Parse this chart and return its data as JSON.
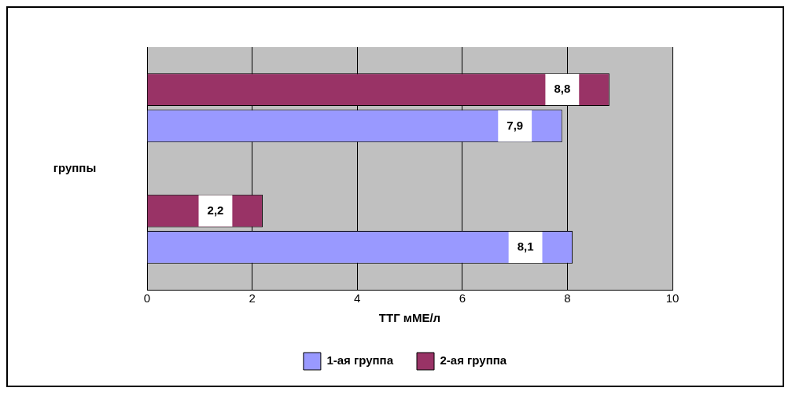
{
  "chart_data": {
    "type": "bar",
    "orientation": "horizontal",
    "xlabel": "ТТГ мМЕ/л",
    "ylabel": "группы",
    "categories": [
      null,
      null
    ],
    "series": [
      {
        "name": "1-ая группа",
        "color": "#9999ff",
        "values": [
          7.9,
          8.1
        ],
        "value_labels": [
          "7,9",
          "8,1"
        ]
      },
      {
        "name": "2-ая группа",
        "color": "#993366",
        "values": [
          8.8,
          2.2
        ],
        "value_labels": [
          "8,8",
          "2,2"
        ]
      }
    ],
    "xlim": [
      0,
      10
    ],
    "xticks": [
      0,
      2,
      4,
      6,
      8,
      10
    ],
    "grid": "x",
    "legend": "bottom"
  }
}
